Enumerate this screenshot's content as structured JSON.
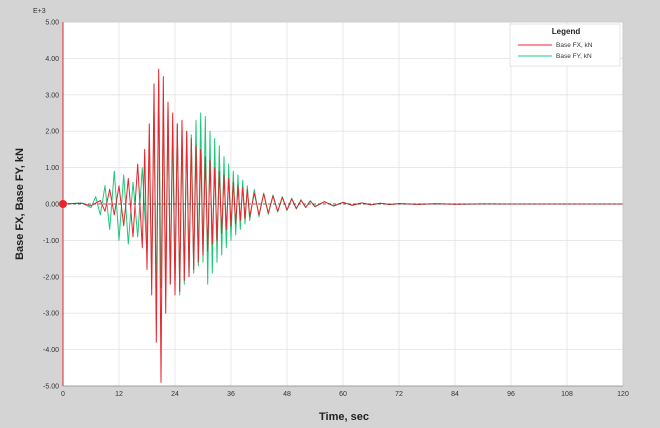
{
  "chart_data": {
    "type": "line",
    "title": "",
    "exponent_label": "E+3",
    "xlabel": "Time,  sec",
    "ylabel": "Base FX, Base FY,  kN",
    "xlim": [
      0,
      120
    ],
    "ylim": [
      -5.0,
      5.0
    ],
    "x_ticks": [
      0,
      12,
      24,
      36,
      48,
      60,
      72,
      84,
      96,
      108,
      120
    ],
    "x_tick_labels": [
      "0",
      "12",
      "24",
      "36",
      "48",
      "60",
      "72",
      "84",
      "96",
      "108",
      "120"
    ],
    "y_ticks": [
      5,
      4,
      3,
      2,
      1,
      0,
      -1,
      -2,
      -3,
      -4,
      -5
    ],
    "y_tick_labels": [
      "5.00",
      "4.00",
      "3.00",
      "2.00",
      "1.00",
      "0.00",
      "-1.00",
      "-2.00",
      "-3.00",
      "-4.00",
      "-5.00"
    ],
    "grid": true,
    "legend": {
      "title": "Legend",
      "placement": "top-right",
      "entries": [
        {
          "label": "Base FX,  kN",
          "color": "#e8242c"
        },
        {
          "label": "Base FY,  kN",
          "color": "#1ec87a"
        }
      ]
    },
    "series": [
      {
        "name": "Base FX,  kN",
        "color": "#e8242c",
        "x": [
          0,
          4,
          6,
          8,
          9,
          10,
          11,
          12,
          13,
          14,
          15,
          16,
          17,
          17.5,
          18,
          18.5,
          19,
          19.5,
          20,
          20.5,
          21,
          21.5,
          22,
          22.5,
          23,
          23.5,
          24,
          24.5,
          25,
          25.5,
          26,
          26.5,
          27,
          27.5,
          28,
          28.5,
          29,
          29.5,
          30,
          30.5,
          31,
          31.5,
          32,
          32.5,
          33,
          33.5,
          34,
          34.5,
          35,
          35.5,
          36,
          36.5,
          37,
          37.5,
          38,
          38.5,
          39,
          39.5,
          40,
          41,
          42,
          43,
          44,
          45,
          46,
          47,
          48,
          49,
          50,
          51,
          52,
          53,
          54,
          56,
          58,
          60,
          62,
          64,
          66,
          68,
          70,
          72,
          76,
          80,
          84,
          90,
          100,
          110,
          120
        ],
        "y": [
          0,
          0.02,
          -0.05,
          0.1,
          -0.2,
          0.4,
          -0.3,
          0.5,
          -0.6,
          0.7,
          -0.9,
          1.1,
          -1.2,
          1.5,
          -1.8,
          2.2,
          -2.5,
          3.3,
          -3.8,
          3.7,
          -4.9,
          3.5,
          -3.0,
          2.8,
          -2.2,
          2.5,
          -2.5,
          2.2,
          -2.4,
          2.3,
          -2.1,
          2.0,
          -2.0,
          1.8,
          -1.8,
          1.6,
          -1.6,
          1.5,
          -1.4,
          1.3,
          -1.3,
          1.2,
          -1.1,
          1.0,
          -1.0,
          0.9,
          -0.8,
          0.8,
          -0.7,
          0.7,
          -0.6,
          0.6,
          -0.55,
          0.5,
          -0.45,
          0.45,
          -0.4,
          0.4,
          -0.35,
          0.3,
          -0.3,
          0.28,
          -0.25,
          0.22,
          -0.2,
          0.18,
          -0.16,
          0.14,
          -0.12,
          0.1,
          -0.09,
          0.08,
          -0.07,
          0.06,
          -0.05,
          0.04,
          -0.03,
          0.03,
          -0.02,
          0.02,
          -0.015,
          0.01,
          -0.01,
          0.005,
          -0.005,
          0.002,
          0,
          0,
          0
        ]
      },
      {
        "name": "Base FY,  kN",
        "color": "#1ec87a",
        "x": [
          0,
          4,
          6,
          7,
          8,
          9,
          10,
          11,
          12,
          13,
          14,
          15,
          16,
          17,
          18,
          18.5,
          19,
          19.5,
          20,
          20.5,
          21,
          21.5,
          22,
          22.5,
          23,
          23.5,
          24,
          24.5,
          25,
          25.5,
          26,
          26.5,
          27,
          27.5,
          28,
          28.5,
          29,
          29.5,
          30,
          30.5,
          31,
          31.5,
          32,
          32.5,
          33,
          33.5,
          34,
          34.5,
          35,
          35.5,
          36,
          36.5,
          37,
          37.5,
          38,
          38.5,
          39,
          39.5,
          40,
          41,
          42,
          43,
          44,
          45,
          46,
          47,
          48,
          49,
          50,
          51,
          52,
          53,
          54,
          56,
          58,
          60,
          62,
          64,
          66,
          68,
          70,
          72,
          76,
          80,
          84,
          90,
          100,
          110,
          120
        ],
        "y": [
          0,
          0.03,
          -0.1,
          0.2,
          -0.3,
          0.5,
          -0.7,
          0.9,
          -1.0,
          0.8,
          -1.1,
          0.6,
          -0.9,
          1.0,
          -1.4,
          1.6,
          -2.0,
          2.6,
          -2.7,
          3.4,
          -2.3,
          2.4,
          -2.0,
          2.7,
          -2.2,
          2.0,
          -2.1,
          2.2,
          -2.5,
          2.0,
          -2.2,
          2.0,
          -2.0,
          1.9,
          -1.9,
          2.3,
          -1.7,
          2.5,
          -1.6,
          2.4,
          -2.2,
          2.0,
          -1.9,
          1.8,
          -1.6,
          1.6,
          -1.4,
          1.3,
          -1.2,
          1.1,
          -1.0,
          0.9,
          -0.85,
          0.8,
          -0.7,
          0.65,
          -0.55,
          0.5,
          -0.45,
          0.4,
          -0.35,
          0.3,
          -0.28,
          0.25,
          -0.22,
          0.2,
          -0.18,
          0.16,
          -0.14,
          0.12,
          -0.1,
          0.09,
          -0.08,
          0.07,
          -0.06,
          0.05,
          -0.04,
          0.03,
          -0.025,
          0.02,
          -0.015,
          0.01,
          -0.008,
          0.005,
          -0.003,
          0.001,
          0,
          0,
          0
        ]
      }
    ]
  }
}
